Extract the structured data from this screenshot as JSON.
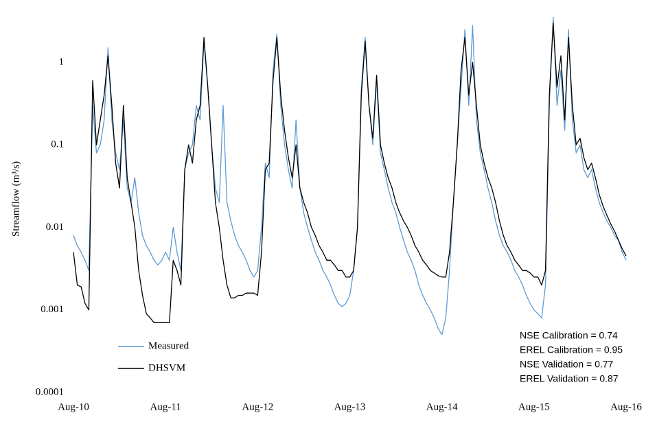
{
  "chart_data": {
    "type": "line",
    "y_label": "Streamflow (m³/s)",
    "log_scale": true,
    "grid": false,
    "legend_position": "lower-left",
    "annotations": [
      "NSE Calibration = 0.74",
      "EREL Calibration = 0.95",
      "NSE Validation = 0.77",
      "EREL Validation = 0.87"
    ],
    "ylim": [
      0.0001,
      4.7
    ],
    "yticks": [
      0.0001,
      0.001,
      0.01,
      0.1,
      1
    ],
    "categories": [
      "Aug-10",
      null,
      null,
      null,
      null,
      null,
      null,
      null,
      null,
      null,
      null,
      null,
      null,
      null,
      null,
      null,
      null,
      null,
      null,
      null,
      null,
      null,
      null,
      null,
      "Aug-11",
      null,
      null,
      null,
      null,
      null,
      null,
      null,
      null,
      null,
      null,
      null,
      null,
      null,
      null,
      null,
      null,
      null,
      null,
      null,
      null,
      null,
      null,
      null,
      "Aug-12",
      null,
      null,
      null,
      null,
      null,
      null,
      null,
      null,
      null,
      null,
      null,
      null,
      null,
      null,
      null,
      null,
      null,
      null,
      null,
      null,
      null,
      null,
      null,
      "Aug-13",
      null,
      null,
      null,
      null,
      null,
      null,
      null,
      null,
      null,
      null,
      null,
      null,
      null,
      null,
      null,
      null,
      null,
      null,
      null,
      null,
      null,
      null,
      null,
      "Aug-14",
      null,
      null,
      null,
      null,
      null,
      null,
      null,
      null,
      null,
      null,
      null,
      null,
      null,
      null,
      null,
      null,
      null,
      null,
      null,
      null,
      null,
      null,
      null,
      "Aug-15",
      null,
      null,
      null,
      null,
      null,
      null,
      null,
      null,
      null,
      null,
      null,
      null,
      null,
      null,
      null,
      null,
      null,
      null,
      null,
      null,
      null,
      null,
      null,
      "Aug-16"
    ],
    "series": [
      {
        "name": "Measured",
        "color": "#5b9bd5",
        "values": [
          0.008,
          0.006,
          0.005,
          0.004,
          0.003,
          0.3,
          0.08,
          0.1,
          0.2,
          1.5,
          0.2,
          0.08,
          0.05,
          0.2,
          0.03,
          0.02,
          0.04,
          0.015,
          0.008,
          0.006,
          0.005,
          0.004,
          0.0035,
          0.004,
          0.005,
          0.004,
          0.01,
          0.005,
          0.003,
          0.05,
          0.08,
          0.1,
          0.3,
          0.2,
          1.8,
          0.5,
          0.1,
          0.03,
          0.02,
          0.3,
          0.02,
          0.012,
          0.008,
          0.006,
          0.005,
          0.004,
          0.003,
          0.0025,
          0.003,
          0.01,
          0.06,
          0.04,
          0.8,
          2.2,
          0.3,
          0.1,
          0.05,
          0.03,
          0.2,
          0.03,
          0.015,
          0.01,
          0.007,
          0.005,
          0.004,
          0.003,
          0.0025,
          0.002,
          0.0015,
          0.0012,
          0.0011,
          0.0012,
          0.0015,
          0.003,
          0.01,
          0.5,
          2.0,
          0.3,
          0.1,
          0.6,
          0.08,
          0.05,
          0.03,
          0.02,
          0.015,
          0.01,
          0.007,
          0.005,
          0.004,
          0.003,
          0.002,
          0.0015,
          0.0012,
          0.001,
          0.0008,
          0.0006,
          0.0005,
          0.0008,
          0.003,
          0.02,
          0.1,
          0.5,
          2.5,
          0.3,
          2.8,
          0.2,
          0.08,
          0.05,
          0.03,
          0.02,
          0.012,
          0.008,
          0.006,
          0.005,
          0.004,
          0.003,
          0.0025,
          0.002,
          0.0015,
          0.0012,
          0.001,
          0.0009,
          0.0008,
          0.002,
          0.3,
          3.5,
          0.3,
          0.8,
          0.15,
          2.5,
          0.2,
          0.08,
          0.1,
          0.05,
          0.04,
          0.05,
          0.03,
          0.02,
          0.015,
          0.012,
          0.01,
          0.008,
          0.007,
          0.005,
          0.004
        ]
      },
      {
        "name": "DHSVM",
        "color": "#000000",
        "values": [
          0.005,
          0.002,
          0.0019,
          0.0012,
          0.001,
          0.6,
          0.1,
          0.2,
          0.4,
          1.2,
          0.3,
          0.06,
          0.03,
          0.3,
          0.04,
          0.02,
          0.01,
          0.003,
          0.0015,
          0.0009,
          0.0008,
          0.0007,
          0.0007,
          0.0007,
          0.0007,
          0.0007,
          0.004,
          0.003,
          0.002,
          0.05,
          0.1,
          0.06,
          0.2,
          0.3,
          2.0,
          0.5,
          0.1,
          0.02,
          0.01,
          0.004,
          0.002,
          0.0014,
          0.0014,
          0.0015,
          0.0015,
          0.0016,
          0.0016,
          0.0016,
          0.0015,
          0.005,
          0.05,
          0.06,
          0.6,
          2.0,
          0.4,
          0.15,
          0.07,
          0.04,
          0.1,
          0.03,
          0.02,
          0.015,
          0.01,
          0.008,
          0.006,
          0.005,
          0.004,
          0.004,
          0.0035,
          0.003,
          0.003,
          0.0025,
          0.0025,
          0.003,
          0.01,
          0.4,
          1.8,
          0.3,
          0.12,
          0.7,
          0.1,
          0.06,
          0.04,
          0.03,
          0.02,
          0.015,
          0.012,
          0.01,
          0.008,
          0.006,
          0.005,
          0.004,
          0.0035,
          0.003,
          0.0028,
          0.0026,
          0.0025,
          0.0025,
          0.005,
          0.02,
          0.1,
          0.8,
          2.0,
          0.4,
          1.0,
          0.3,
          0.1,
          0.06,
          0.04,
          0.03,
          0.02,
          0.012,
          0.008,
          0.006,
          0.005,
          0.004,
          0.0035,
          0.003,
          0.003,
          0.0028,
          0.0025,
          0.0025,
          0.002,
          0.003,
          0.4,
          3.0,
          0.5,
          1.2,
          0.2,
          2.0,
          0.3,
          0.1,
          0.12,
          0.07,
          0.05,
          0.06,
          0.04,
          0.025,
          0.018,
          0.014,
          0.011,
          0.009,
          0.007,
          0.0055,
          0.0045
        ]
      }
    ]
  }
}
